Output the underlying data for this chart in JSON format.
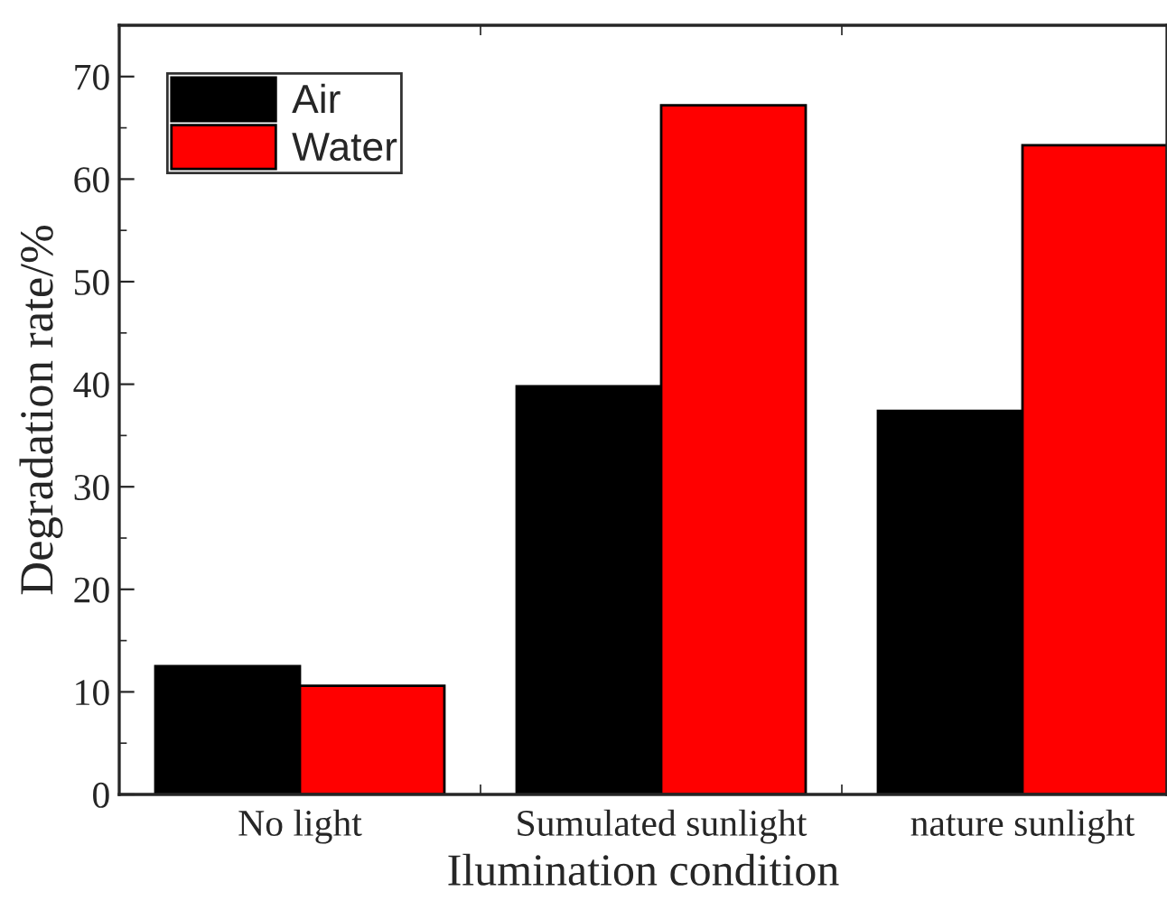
{
  "chart_data": {
    "type": "bar",
    "xlabel": "Ilumination condition",
    "ylabel": "Degradation rate/%",
    "categories": [
      "No light",
      "Sumulated sunlight",
      "nature sunlight"
    ],
    "series": [
      {
        "name": "Air",
        "color": "#000000",
        "values": [
          12.5,
          39.8,
          37.4
        ]
      },
      {
        "name": "Water",
        "color": "#ff0000",
        "values": [
          10.6,
          67.2,
          63.3
        ]
      }
    ],
    "ylim": [
      0,
      75
    ],
    "yticks": [
      0,
      10,
      20,
      30,
      40,
      50,
      60,
      70
    ],
    "grid": false,
    "legend": "top left"
  }
}
